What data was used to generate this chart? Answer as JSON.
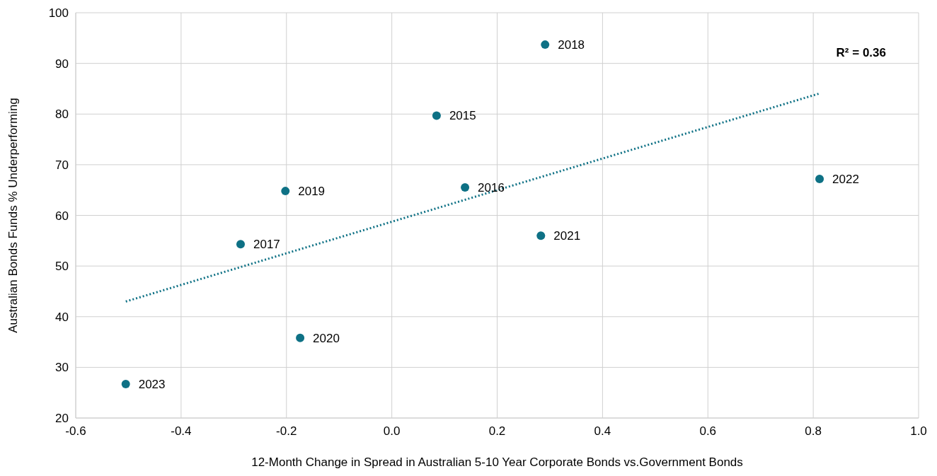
{
  "chart_data": {
    "type": "scatter",
    "xlabel": "12-Month Change in Spread in Australian 5-10 Year Corporate Bonds vs.Government Bonds",
    "ylabel": "Australian Bonds Funds % Underperforming",
    "series": [
      {
        "color": "#0e7185",
        "x": [
          0.085,
          0.139,
          -0.287,
          0.291,
          -0.202,
          -0.174,
          0.283,
          0.812,
          -0.505
        ],
        "values": [
          79.7,
          65.5,
          54.3,
          93.7,
          64.8,
          35.8,
          56.0,
          67.2,
          26.7
        ]
      },
      {
        "type": "line",
        "color": "#0e7185",
        "line_style": "dotted",
        "marker": "none",
        "x": [
          -0.505,
          0.81
        ],
        "values": [
          43.0,
          84.0
        ]
      }
    ],
    "annotations": [
      "R² = 0.36",
      {
        "text": "2015",
        "x": 0.085,
        "y": 79.7
      },
      {
        "text": "2016",
        "x": 0.139,
        "y": 65.5
      },
      {
        "text": "2017",
        "x": -0.287,
        "y": 54.3
      },
      {
        "text": "2018",
        "x": 0.291,
        "y": 93.7
      },
      {
        "text": "2019",
        "x": -0.202,
        "y": 64.8
      },
      {
        "text": "2020",
        "x": -0.174,
        "y": 35.8
      },
      {
        "text": "2021",
        "x": 0.283,
        "y": 56.0
      },
      {
        "text": "2022",
        "x": 0.812,
        "y": 67.2
      },
      {
        "text": "2023",
        "x": -0.505,
        "y": 26.7
      }
    ],
    "xlim": [
      -0.6,
      1.0
    ],
    "xticks": [
      {
        "value": -0.6,
        "label": "-0.6"
      },
      {
        "value": -0.4,
        "label": "-0.4"
      },
      {
        "value": -0.2,
        "label": "-0.2"
      },
      {
        "value": 0,
        "label": "0.0"
      },
      {
        "value": 0.2,
        "label": "0.2"
      },
      {
        "value": 0.4,
        "label": "0.4"
      },
      {
        "value": 0.6,
        "label": "0.6"
      },
      {
        "value": 0.8,
        "label": "0.8"
      },
      {
        "value": 1.0,
        "label": "1.0"
      }
    ],
    "ylim": [
      20,
      100
    ],
    "yticks": [
      20,
      30,
      40,
      50,
      60,
      70,
      80,
      90,
      100
    ],
    "grid": true,
    "marker": "circle"
  }
}
